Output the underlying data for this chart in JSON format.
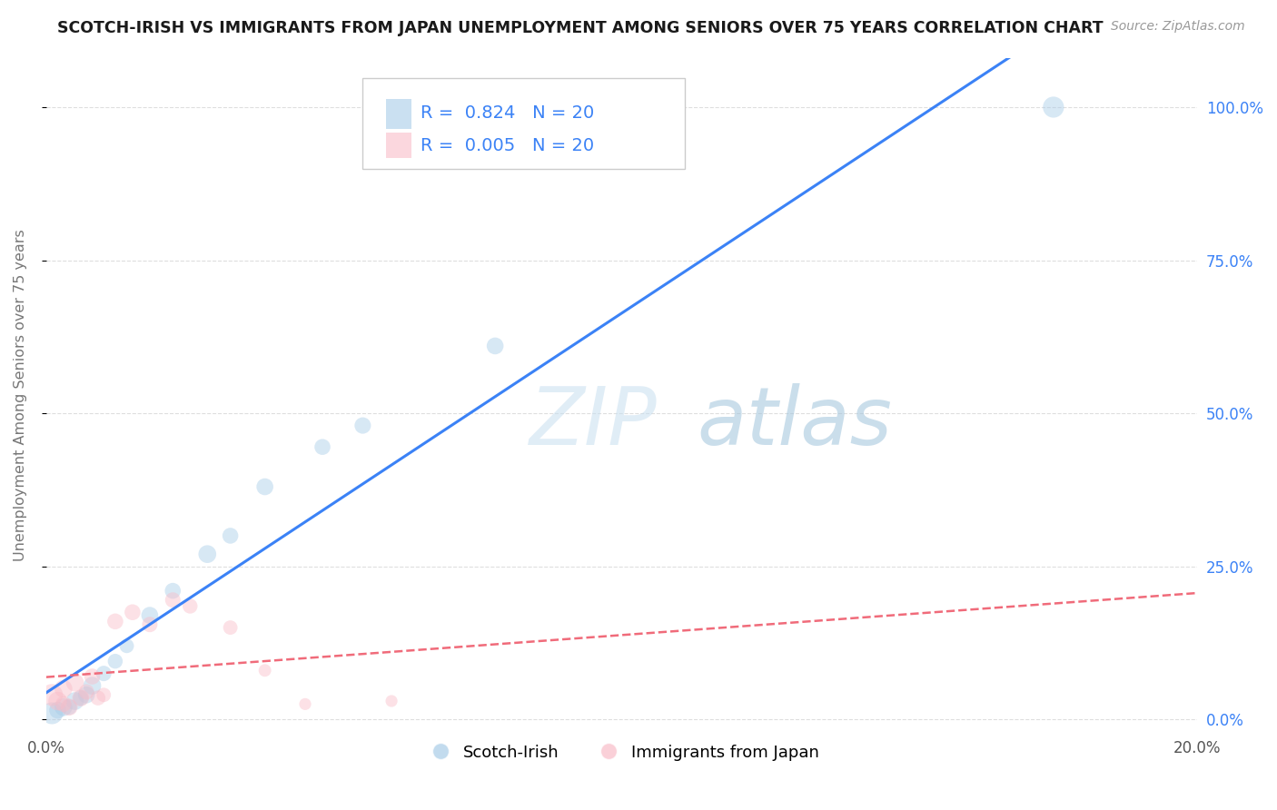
{
  "title": "SCOTCH-IRISH VS IMMIGRANTS FROM JAPAN UNEMPLOYMENT AMONG SENIORS OVER 75 YEARS CORRELATION CHART",
  "source": "Source: ZipAtlas.com",
  "ylabel": "Unemployment Among Seniors over 75 years",
  "watermark_zip": "ZIP",
  "watermark_atlas": "atlas",
  "blue_label": "Scotch-Irish",
  "pink_label": "Immigrants from Japan",
  "blue_R": "0.824",
  "blue_N": "20",
  "pink_R": "0.005",
  "pink_N": "20",
  "xlim": [
    0.0,
    0.2
  ],
  "ylim": [
    -0.02,
    1.08
  ],
  "xticks": [
    0.0,
    0.05,
    0.1,
    0.15,
    0.2
  ],
  "yticks_right": [
    0.0,
    0.25,
    0.5,
    0.75,
    1.0
  ],
  "ytick_labels_right": [
    "0.0%",
    "25.0%",
    "50.0%",
    "75.0%",
    "100.0%"
  ],
  "blue_color": "#a8cce8",
  "blue_line_color": "#3b82f6",
  "pink_color": "#f9bdc8",
  "pink_line_color": "#f06b7a",
  "blue_x": [
    0.001,
    0.002,
    0.003,
    0.004,
    0.005,
    0.006,
    0.007,
    0.008,
    0.01,
    0.012,
    0.014,
    0.018,
    0.022,
    0.028,
    0.032,
    0.038,
    0.048,
    0.055,
    0.078,
    0.175
  ],
  "blue_y": [
    0.01,
    0.015,
    0.02,
    0.02,
    0.03,
    0.035,
    0.04,
    0.055,
    0.075,
    0.095,
    0.12,
    0.17,
    0.21,
    0.27,
    0.3,
    0.38,
    0.445,
    0.48,
    0.61,
    1.0
  ],
  "blue_sizes": [
    300,
    180,
    200,
    150,
    200,
    150,
    180,
    200,
    150,
    140,
    130,
    180,
    160,
    200,
    160,
    180,
    160,
    170,
    180,
    280
  ],
  "pink_x": [
    0.001,
    0.002,
    0.003,
    0.003,
    0.004,
    0.005,
    0.006,
    0.007,
    0.008,
    0.009,
    0.01,
    0.012,
    0.015,
    0.018,
    0.022,
    0.025,
    0.032,
    0.038,
    0.045,
    0.06
  ],
  "pink_y": [
    0.04,
    0.03,
    0.025,
    0.05,
    0.02,
    0.06,
    0.035,
    0.045,
    0.07,
    0.035,
    0.04,
    0.16,
    0.175,
    0.155,
    0.195,
    0.185,
    0.15,
    0.08,
    0.025,
    0.03
  ],
  "pink_sizes": [
    300,
    220,
    160,
    200,
    180,
    200,
    180,
    150,
    160,
    140,
    130,
    160,
    160,
    150,
    150,
    140,
    130,
    100,
    90,
    90
  ],
  "background_color": "#ffffff",
  "grid_color": "#d0d0d0"
}
